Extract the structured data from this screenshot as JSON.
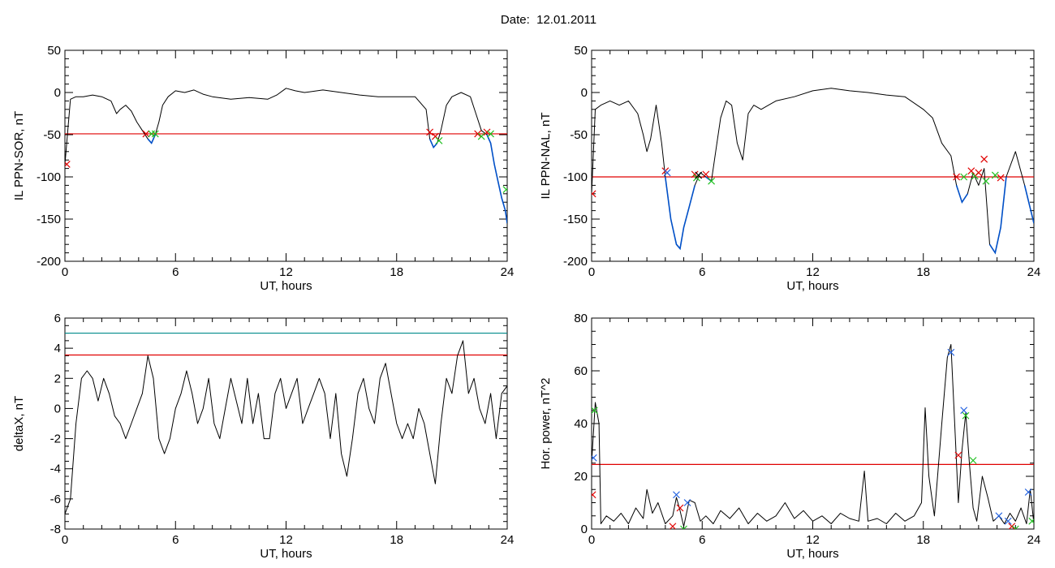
{
  "header": {
    "date_label": "Date:",
    "date_value": "12.01.2011"
  },
  "colors": {
    "trace": "#000000",
    "threshold": "#e00000",
    "cyan_level": "#008b8b",
    "highlight": "#0050c8",
    "cross_red": "#e00000",
    "cross_green": "#20c020",
    "cross_blue": "#2060e0"
  },
  "chart_data": [
    {
      "type": "line",
      "ylabel": "IL PPN-SOR, nT",
      "xlabel": "UT, hours",
      "xlim": [
        0,
        24
      ],
      "ylim": [
        -200,
        50
      ],
      "xticks": [
        "0",
        "6",
        "12",
        "18",
        "24"
      ],
      "yticks": [
        "50",
        "0",
        "-50",
        "-100",
        "-150",
        "-200"
      ],
      "threshold": -49,
      "series": [
        {
          "values_x": [
            0,
            0.3,
            0.6,
            1.0,
            1.5,
            2.0,
            2.5,
            2.8,
            3.0,
            3.3,
            3.6,
            3.9,
            4.2,
            4.5,
            4.7,
            4.9,
            5.1,
            5.3,
            5.6,
            6.0,
            6.5,
            7.0,
            7.5,
            8.0,
            9.0,
            10.0,
            11.0,
            11.5,
            12.0,
            12.5,
            13.0,
            14.0,
            15.0,
            16.0,
            17.0,
            18.0,
            19.0,
            19.6,
            19.8,
            20.0,
            20.2,
            20.4,
            20.7,
            21.0,
            21.5,
            22.0,
            22.3,
            22.6,
            22.9,
            23.1,
            23.3,
            23.5,
            23.7,
            23.9,
            24.0
          ],
          "values_y": [
            -85,
            -8,
            -5,
            -5,
            -3,
            -5,
            -10,
            -25,
            -20,
            -15,
            -22,
            -35,
            -45,
            -55,
            -60,
            -50,
            -35,
            -15,
            -5,
            2,
            0,
            3,
            -2,
            -5,
            -8,
            -6,
            -8,
            -3,
            5,
            2,
            0,
            3,
            0,
            -3,
            -5,
            -5,
            -5,
            -20,
            -55,
            -65,
            -60,
            -45,
            -15,
            -5,
            0,
            -5,
            -25,
            -45,
            -50,
            -60,
            -85,
            -105,
            -125,
            -140,
            -155
          ]
        }
      ],
      "crosses": [
        {
          "x": 0.1,
          "y": -85,
          "color": "red"
        },
        {
          "x": 4.4,
          "y": -49,
          "color": "red"
        },
        {
          "x": 4.7,
          "y": -49,
          "color": "green"
        },
        {
          "x": 4.9,
          "y": -49,
          "color": "green"
        },
        {
          "x": 19.8,
          "y": -47,
          "color": "red"
        },
        {
          "x": 20.1,
          "y": -52,
          "color": "red"
        },
        {
          "x": 20.3,
          "y": -57,
          "color": "green"
        },
        {
          "x": 22.4,
          "y": -49,
          "color": "red"
        },
        {
          "x": 22.6,
          "y": -52,
          "color": "green"
        },
        {
          "x": 22.9,
          "y": -47,
          "color": "red"
        },
        {
          "x": 23.1,
          "y": -49,
          "color": "green"
        },
        {
          "x": 23.95,
          "y": -115,
          "color": "green"
        }
      ]
    },
    {
      "type": "line",
      "ylabel": "IL PPN-NAL, nT",
      "xlabel": "UT, hours",
      "xlim": [
        0,
        24
      ],
      "ylim": [
        -200,
        50
      ],
      "xticks": [
        "0",
        "6",
        "12",
        "18",
        "24"
      ],
      "yticks": [
        "50",
        "0",
        "-50",
        "-100",
        "-150",
        "-200"
      ],
      "threshold": -100,
      "series": [
        {
          "values_x": [
            0,
            0.2,
            0.5,
            1.0,
            1.5,
            2.0,
            2.5,
            2.8,
            3.0,
            3.2,
            3.5,
            3.8,
            4.0,
            4.3,
            4.6,
            4.8,
            5.0,
            5.3,
            5.6,
            5.9,
            6.2,
            6.5,
            6.8,
            7.0,
            7.3,
            7.6,
            7.9,
            8.2,
            8.5,
            8.8,
            9.2,
            9.6,
            10.0,
            11.0,
            12.0,
            13.0,
            14.0,
            15.0,
            16.0,
            17.0,
            18.0,
            18.5,
            19.0,
            19.5,
            19.8,
            20.1,
            20.4,
            20.7,
            21.0,
            21.3,
            21.6,
            21.9,
            22.2,
            22.5,
            23.0,
            23.5,
            24.0
          ],
          "values_y": [
            -120,
            -20,
            -15,
            -10,
            -15,
            -10,
            -25,
            -50,
            -70,
            -55,
            -15,
            -60,
            -100,
            -150,
            -180,
            -185,
            -160,
            -135,
            -110,
            -95,
            -100,
            -105,
            -60,
            -30,
            -10,
            -15,
            -60,
            -80,
            -25,
            -15,
            -20,
            -15,
            -10,
            -5,
            2,
            5,
            2,
            0,
            -3,
            -5,
            -20,
            -30,
            -60,
            -75,
            -110,
            -130,
            -120,
            -95,
            -110,
            -90,
            -180,
            -190,
            -160,
            -100,
            -70,
            -110,
            -155
          ]
        }
      ],
      "crosses": [
        {
          "x": 0.05,
          "y": -120,
          "color": "red"
        },
        {
          "x": 4.0,
          "y": -93,
          "color": "red"
        },
        {
          "x": 4.1,
          "y": -95,
          "color": "blue"
        },
        {
          "x": 5.6,
          "y": -97,
          "color": "red"
        },
        {
          "x": 5.7,
          "y": -101,
          "color": "green"
        },
        {
          "x": 5.8,
          "y": -98,
          "color": "black"
        },
        {
          "x": 6.2,
          "y": -97,
          "color": "red"
        },
        {
          "x": 6.5,
          "y": -105,
          "color": "green"
        },
        {
          "x": 19.8,
          "y": -100,
          "color": "red"
        },
        {
          "x": 20.2,
          "y": -100,
          "color": "green"
        },
        {
          "x": 20.6,
          "y": -93,
          "color": "red"
        },
        {
          "x": 20.8,
          "y": -99,
          "color": "green"
        },
        {
          "x": 21.0,
          "y": -95,
          "color": "red"
        },
        {
          "x": 21.3,
          "y": -79,
          "color": "red"
        },
        {
          "x": 21.4,
          "y": -105,
          "color": "green"
        },
        {
          "x": 21.9,
          "y": -98,
          "color": "green"
        },
        {
          "x": 22.2,
          "y": -101,
          "color": "red"
        }
      ]
    },
    {
      "type": "line",
      "ylabel": "deltaX, nT",
      "xlabel": "UT, hours",
      "xlim": [
        0,
        24
      ],
      "ylim": [
        -8,
        6
      ],
      "xticks": [
        "0",
        "6",
        "12",
        "18",
        "24"
      ],
      "yticks": [
        "6",
        "4",
        "2",
        "0",
        "-2",
        "-4",
        "-6",
        "-8"
      ],
      "threshold": 3.55,
      "level": 5.0,
      "series": [
        {
          "values_x": [
            0,
            0.3,
            0.6,
            0.9,
            1.2,
            1.5,
            1.8,
            2.1,
            2.4,
            2.7,
            3.0,
            3.3,
            3.6,
            3.9,
            4.2,
            4.5,
            4.8,
            5.1,
            5.4,
            5.7,
            6.0,
            6.3,
            6.6,
            6.9,
            7.2,
            7.5,
            7.8,
            8.1,
            8.4,
            8.7,
            9.0,
            9.3,
            9.6,
            9.9,
            10.2,
            10.5,
            10.8,
            11.1,
            11.4,
            11.7,
            12.0,
            12.3,
            12.6,
            12.9,
            13.2,
            13.5,
            13.8,
            14.1,
            14.4,
            14.7,
            15.0,
            15.3,
            15.6,
            15.9,
            16.2,
            16.5,
            16.8,
            17.1,
            17.4,
            17.7,
            18.0,
            18.3,
            18.6,
            18.9,
            19.2,
            19.5,
            19.8,
            20.1,
            20.4,
            20.7,
            21.0,
            21.3,
            21.6,
            21.9,
            22.2,
            22.5,
            22.8,
            23.1,
            23.4,
            23.7,
            24.0
          ],
          "values_y": [
            -7,
            -6,
            -1,
            2,
            2.5,
            2,
            0.5,
            2,
            1,
            -0.5,
            -1,
            -2,
            -1,
            0,
            1,
            3.5,
            2,
            -2,
            -3,
            -2,
            0,
            1,
            2.5,
            1,
            -1,
            0,
            2,
            -1,
            -2,
            0,
            2,
            0.5,
            -1,
            2,
            -1,
            1,
            -2,
            -2,
            1,
            2,
            0,
            1,
            2,
            -1,
            0,
            1,
            2,
            1,
            -2,
            1,
            -3,
            -4.5,
            -2,
            1,
            2,
            0,
            -1,
            2,
            3,
            1,
            -1,
            -2,
            -1,
            -2,
            0,
            -1,
            -3,
            -5,
            -1,
            2,
            1,
            3.5,
            4.5,
            1,
            2,
            0,
            -1,
            1,
            -2,
            1,
            1.5
          ]
        }
      ]
    },
    {
      "type": "line",
      "ylabel": "Hor. power, nT^2",
      "xlabel": "UT, hours",
      "xlim": [
        0,
        24
      ],
      "ylim": [
        0,
        80
      ],
      "xticks": [
        "0",
        "6",
        "12",
        "18",
        "24"
      ],
      "yticks": [
        "80",
        "60",
        "40",
        "20",
        "0"
      ],
      "threshold": 24.5,
      "series": [
        {
          "values_x": [
            0,
            0.2,
            0.4,
            0.5,
            0.8,
            1.2,
            1.6,
            2.0,
            2.4,
            2.8,
            3.0,
            3.3,
            3.6,
            4.0,
            4.4,
            4.6,
            4.8,
            5.0,
            5.3,
            5.6,
            5.9,
            6.2,
            6.6,
            7.0,
            7.5,
            8.0,
            8.5,
            9.0,
            9.5,
            10.0,
            10.5,
            11.0,
            11.5,
            12.0,
            12.5,
            13.0,
            13.5,
            14.0,
            14.5,
            14.8,
            15.0,
            15.5,
            16.0,
            16.5,
            17.0,
            17.5,
            17.9,
            18.1,
            18.3,
            18.6,
            19.0,
            19.3,
            19.5,
            19.7,
            19.9,
            20.1,
            20.3,
            20.5,
            20.7,
            20.9,
            21.2,
            21.5,
            21.8,
            22.1,
            22.4,
            22.7,
            23.0,
            23.3,
            23.6,
            23.8,
            24.0
          ],
          "values_y": [
            25,
            48,
            40,
            2,
            5,
            3,
            6,
            2,
            8,
            4,
            15,
            6,
            10,
            2,
            5,
            12,
            7,
            1,
            11,
            10,
            3,
            5,
            2,
            7,
            4,
            8,
            2,
            6,
            3,
            5,
            10,
            4,
            7,
            3,
            5,
            2,
            6,
            4,
            3,
            22,
            3,
            4,
            2,
            6,
            3,
            5,
            10,
            46,
            20,
            5,
            40,
            65,
            70,
            40,
            10,
            30,
            44,
            25,
            8,
            3,
            20,
            12,
            3,
            5,
            2,
            6,
            3,
            8,
            2,
            15,
            2
          ]
        }
      ],
      "crosses": [
        {
          "x": 0.05,
          "y": 13,
          "color": "red"
        },
        {
          "x": 0.1,
          "y": 27,
          "color": "blue"
        },
        {
          "x": 0.15,
          "y": 45,
          "color": "green"
        },
        {
          "x": 4.4,
          "y": 1,
          "color": "red"
        },
        {
          "x": 4.6,
          "y": 13,
          "color": "blue"
        },
        {
          "x": 4.8,
          "y": 8,
          "color": "red"
        },
        {
          "x": 5.0,
          "y": 0,
          "color": "green"
        },
        {
          "x": 5.2,
          "y": 10,
          "color": "blue"
        },
        {
          "x": 19.5,
          "y": 67,
          "color": "blue"
        },
        {
          "x": 19.9,
          "y": 28,
          "color": "red"
        },
        {
          "x": 20.2,
          "y": 45,
          "color": "blue"
        },
        {
          "x": 20.3,
          "y": 43,
          "color": "green"
        },
        {
          "x": 20.7,
          "y": 26,
          "color": "green"
        },
        {
          "x": 22.1,
          "y": 5,
          "color": "blue"
        },
        {
          "x": 22.6,
          "y": 3,
          "color": "blue"
        },
        {
          "x": 22.8,
          "y": 1,
          "color": "red"
        },
        {
          "x": 23.0,
          "y": 0,
          "color": "green"
        },
        {
          "x": 23.7,
          "y": 14,
          "color": "blue"
        },
        {
          "x": 23.9,
          "y": 3,
          "color": "green"
        }
      ]
    }
  ]
}
